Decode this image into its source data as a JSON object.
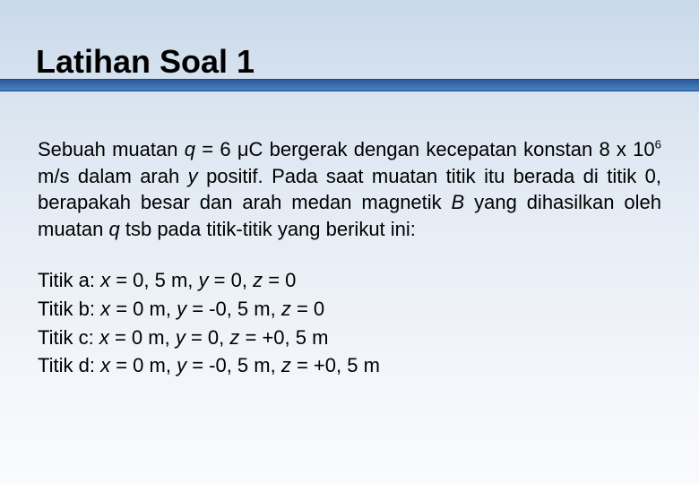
{
  "colors": {
    "header_bar_top": "#2a5a9a",
    "header_bar_mid": "#3a6fb0",
    "header_bar_bottom": "#4a80c0",
    "bg_gradient_top": "#c9d9ea",
    "bg_gradient_bottom": "#fafbfd",
    "text": "#000000"
  },
  "typography": {
    "title_fontsize": 36,
    "body_fontsize": 22,
    "font_family": "Verdana"
  },
  "title": "Latihan Soal 1",
  "paragraph": {
    "p1": "Sebuah muatan ",
    "p2_italic": "q",
    "p3": " = 6 ",
    "p4_mu": "μ",
    "p5": "C bergerak dengan kecepatan konstan 8 x 10",
    "p6_sup": "6",
    "p7": " m/s dalam arah ",
    "p8_italic": "y",
    "p9": " positif. Pada saat muatan titik itu berada di titik 0, berapakah besar dan arah medan magnetik ",
    "p10_italic": "B",
    "p11": " yang dihasilkan oleh muatan ",
    "p12_italic": "q",
    "p13": " tsb pada titik-titik yang berikut ini:"
  },
  "points": [
    {
      "label": "Titik a: ",
      "x": "x",
      "xeq": " = 0, 5 m, ",
      "y": "y",
      "yeq": " = 0, ",
      "z": "z",
      "zeq": " = 0"
    },
    {
      "label": "Titik b: ",
      "x": "x",
      "xeq": " = 0 m, ",
      "y": "y",
      "yeq": " = -0, 5 m, ",
      "z": "z",
      "zeq": " = 0"
    },
    {
      "label": "Titik c: ",
      "x": "x",
      "xeq": " = 0 m, ",
      "y": "y",
      "yeq": " = 0, ",
      "z": "z",
      "zeq": " = +0, 5 m"
    },
    {
      "label": "Titik d: ",
      "x": "x",
      "xeq": " = 0 m, ",
      "y": "y",
      "yeq": " = -0, 5 m, ",
      "z": "z",
      "zeq": " = +0, 5 m"
    }
  ]
}
